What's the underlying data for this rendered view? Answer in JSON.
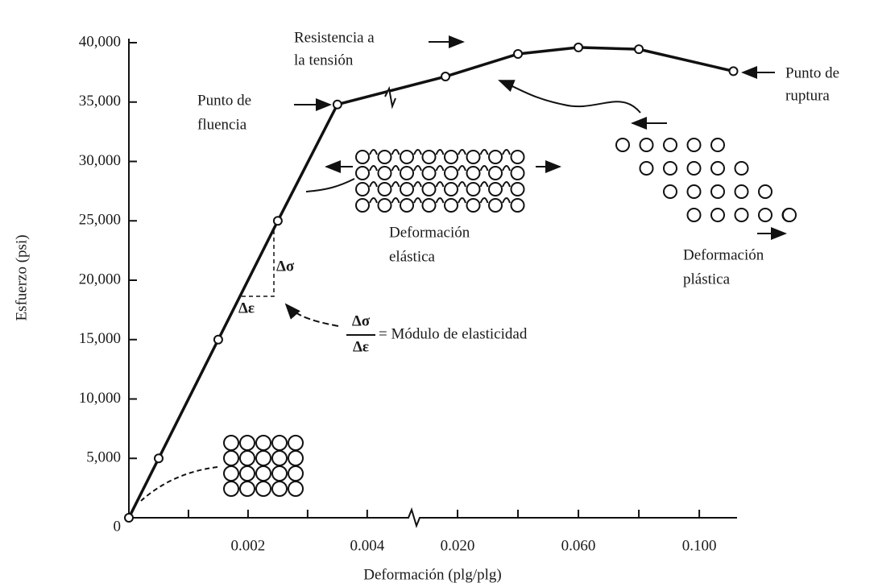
{
  "chart_data": {
    "type": "line",
    "y_label": "Esfuerzo (psi)",
    "x_label": "Deformación (plg/plg)",
    "x": [
      0,
      0.0005,
      0.0015,
      0.0025,
      0.0035,
      0.016,
      0.04,
      0.06,
      0.08,
      0.1113
    ],
    "values": [
      0,
      5000,
      15000,
      25000,
      34800,
      37150,
      39050,
      39600,
      39450,
      37600
    ],
    "color": "#111111",
    "xlim": [
      [
        0,
        0.0048
      ],
      [
        0.00587,
        0.1125
      ]
    ],
    "xticks": [
      0.002,
      0.004,
      {
        "value": 0.02,
        "label": "0.020"
      },
      {
        "value": 0.06,
        "label": "0.060"
      },
      {
        "value": 0.1,
        "label": "0.100"
      }
    ],
    "xminor": [
      0.001,
      0.003,
      0.04,
      0.08
    ],
    "ylim": [
      0,
      40000
    ],
    "yticks": [
      0,
      {
        "value": 5000,
        "label": "5,000"
      },
      {
        "value": 10000,
        "label": "10,000"
      },
      {
        "value": 15000,
        "label": "15,000"
      },
      {
        "value": 20000,
        "label": "20,000"
      },
      {
        "value": 25000,
        "label": "25,000"
      },
      {
        "value": 30000,
        "label": "30,000"
      },
      {
        "value": 35000,
        "label": "35,000"
      },
      {
        "value": 40000,
        "label": "40,000"
      }
    ],
    "annotations": {
      "tensile": [
        "Resistencia a",
        "la tensión"
      ],
      "yield": [
        "Punto de",
        "fluencia"
      ],
      "rupture": [
        "Punto de",
        "ruptura"
      ],
      "elastic": [
        "Deformación",
        "elástica"
      ],
      "plastic": [
        "Deformación",
        "plástica"
      ],
      "dsigma": "Δσ",
      "deps": "Δε",
      "modulus_num": "Δσ",
      "modulus_den": "Δε",
      "modulus": "= Módulo de elasticidad"
    }
  }
}
